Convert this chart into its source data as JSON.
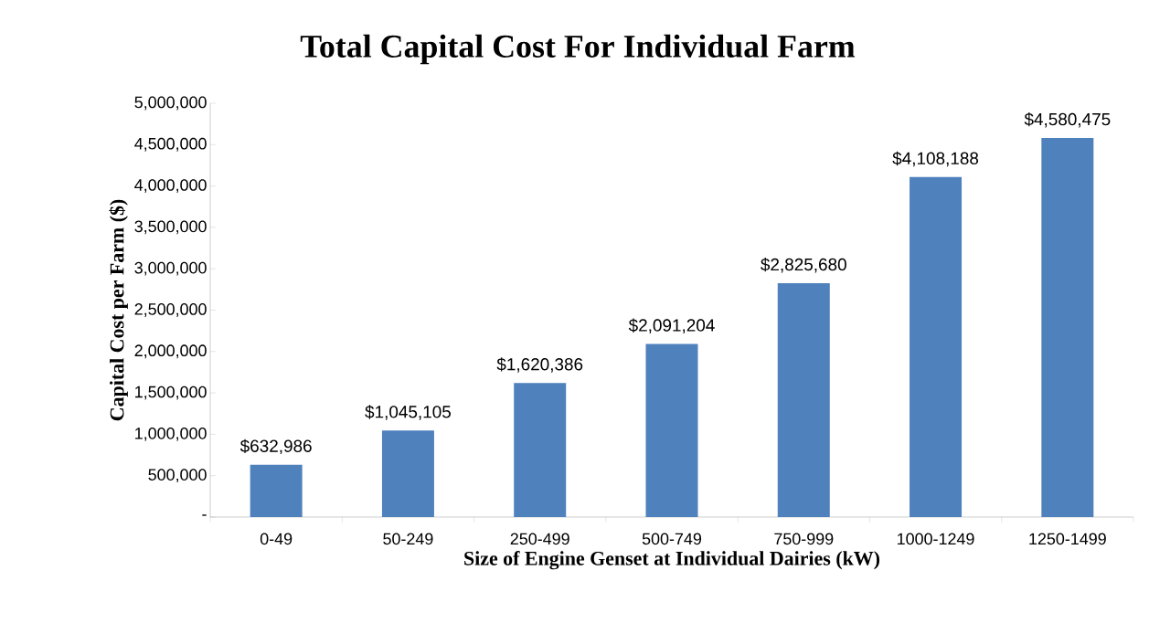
{
  "chart_data": {
    "type": "bar",
    "title": "Total Capital Cost For Individual Farm",
    "xlabel": "Size of Engine Genset at Individual Dairies (kW)",
    "ylabel": "Capital Cost per Farm ($)",
    "categories": [
      "0-49",
      "50-249",
      "250-499",
      "500-749",
      "750-999",
      "1000-1249",
      "1250-1499"
    ],
    "values": [
      632986,
      1045105,
      1620386,
      2091204,
      2825680,
      4108188,
      4580475
    ],
    "value_labels": [
      "$632,986",
      "$1,045,105",
      "$1,620,386",
      "$2,091,204",
      "$2,825,680",
      "$4,108,188",
      "$4,580,475"
    ],
    "color": "#4f81bd",
    "ylim": [
      0,
      5000000
    ],
    "yticks": [
      {
        "value": 0,
        "label": "-"
      },
      {
        "value": 500000,
        "label": "500,000"
      },
      {
        "value": 1000000,
        "label": "1,000,000"
      },
      {
        "value": 1500000,
        "label": "1,500,000"
      },
      {
        "value": 2000000,
        "label": "2,000,000"
      },
      {
        "value": 2500000,
        "label": "2,500,000"
      },
      {
        "value": 3000000,
        "label": "3,000,000"
      },
      {
        "value": 3500000,
        "label": "3,500,000"
      },
      {
        "value": 4000000,
        "label": "4,000,000"
      },
      {
        "value": 4500000,
        "label": "4,500,000"
      },
      {
        "value": 5000000,
        "label": "5,000,000"
      }
    ],
    "grid": false
  }
}
